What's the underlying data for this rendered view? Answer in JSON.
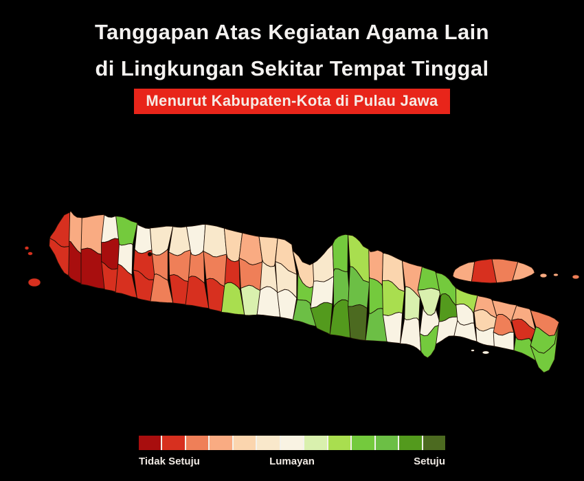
{
  "title": {
    "line1": "Tanggapan Atas Kegiatan Agama Lain",
    "line2": "di Lingkungan Sekitar Tempat Tinggal"
  },
  "badge": {
    "text": "Menurut Kabupaten-Kota di Pulau Jawa"
  },
  "legend": {
    "left": "Tidak Setuju",
    "middle": "Lumayan",
    "right": "Setuju"
  },
  "colors": {
    "background": "#000000",
    "title_text": "#f4f2f0",
    "badge_bg": "#e8251a",
    "badge_text": "#f6ebe5",
    "legend_label": "#efe9e3",
    "legend_divider": "#f4f2ec",
    "region_border": "#1c0d04",
    "city_dot": "#170903"
  },
  "chart_data": {
    "type": "choropleth",
    "region": "Pulau Jawa",
    "measure": "Tanggapan atas kegiatan agama lain di lingkungan sekitar tempat tinggal, menurut kabupaten-kota",
    "scale": {
      "levels": 13,
      "min_label": "Tidak Setuju",
      "mid_label": "Lumayan",
      "max_label": "Setuju",
      "note": "level 0 = Tidak Setuju (dark red), 6 = Lumayan (off-white), 12 = Setuju (dark green)"
    },
    "palette": [
      "#a80e0e",
      "#d7301f",
      "#ef7f58",
      "#f9ab82",
      "#fbd5ae",
      "#f9e8cb",
      "#f9f3e3",
      "#d9f0ae",
      "#a9de4f",
      "#74ca3d",
      "#6cbf45",
      "#539a1d",
      "#4c6a20"
    ],
    "java_strip_levels": [
      [
        1,
        1
      ],
      [
        3,
        0
      ],
      [
        3,
        0
      ],
      [
        6,
        0,
        1
      ],
      [
        9,
        6,
        1
      ],
      [
        6,
        1,
        1
      ],
      [
        5,
        2,
        2
      ],
      [
        5,
        2,
        1
      ],
      [
        6,
        2,
        1
      ],
      [
        5,
        2,
        1
      ],
      [
        4,
        1,
        8
      ],
      [
        3,
        2,
        7
      ],
      [
        4,
        5,
        6
      ],
      [
        4,
        5,
        6
      ],
      [
        4,
        9,
        10
      ],
      [
        5,
        6,
        11
      ],
      [
        9,
        10,
        11
      ],
      [
        8,
        10,
        12
      ],
      [
        3,
        9,
        10
      ],
      [
        4,
        8,
        6
      ],
      [
        3,
        7,
        6
      ],
      [
        9,
        7,
        6,
        9
      ],
      [
        9,
        11,
        6
      ],
      [
        8,
        6,
        6
      ],
      [
        3,
        4,
        6
      ],
      [
        3,
        2,
        6
      ],
      [
        3,
        1,
        9
      ],
      [
        2,
        9,
        9
      ]
    ],
    "madura_levels": [
      3,
      1,
      2,
      3
    ],
    "islet_levels": {
      "west": [
        1,
        1,
        1
      ],
      "east": [
        3,
        3,
        2
      ],
      "south": [
        6,
        6
      ]
    }
  }
}
